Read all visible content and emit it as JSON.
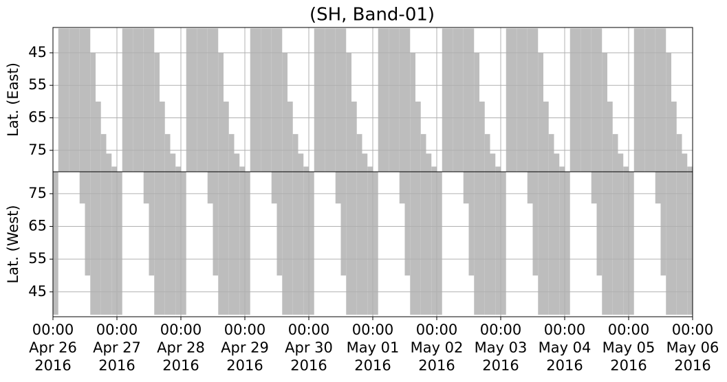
{
  "chart_data": {
    "type": "bar",
    "title": "(SH, Band-01)",
    "color": "#bdbdbd",
    "grid": true,
    "xlim": [
      "2016-04-26 00:00",
      "2016-05-06 00:00"
    ],
    "xticks": [
      {
        "value": "2016-04-26 00:00",
        "label": [
          "00:00",
          "Apr 26",
          "2016"
        ]
      },
      {
        "value": "2016-04-27 00:00",
        "label": [
          "00:00",
          "Apr 27",
          "2016"
        ]
      },
      {
        "value": "2016-04-28 00:00",
        "label": [
          "00:00",
          "Apr 28",
          "2016"
        ]
      },
      {
        "value": "2016-04-29 00:00",
        "label": [
          "00:00",
          "Apr 29",
          "2016"
        ]
      },
      {
        "value": "2016-04-30 00:00",
        "label": [
          "00:00",
          "Apr 30",
          "2016"
        ]
      },
      {
        "value": "2016-05-01 00:00",
        "label": [
          "00:00",
          "May 01",
          "2016"
        ]
      },
      {
        "value": "2016-05-02 00:00",
        "label": [
          "00:00",
          "May 02",
          "2016"
        ]
      },
      {
        "value": "2016-05-03 00:00",
        "label": [
          "00:00",
          "May 03",
          "2016"
        ]
      },
      {
        "value": "2016-05-04 00:00",
        "label": [
          "00:00",
          "May 04",
          "2016"
        ]
      },
      {
        "value": "2016-05-05 00:00",
        "label": [
          "00:00",
          "May 05",
          "2016"
        ]
      },
      {
        "value": "2016-05-06 00:00",
        "label": [
          "00:00",
          "May 06",
          "2016"
        ]
      }
    ],
    "x": [
      "2016-04-26 00:00",
      "2016-04-26 02:00",
      "2016-04-26 04:00",
      "2016-04-26 06:00",
      "2016-04-26 08:00",
      "2016-04-26 10:00",
      "2016-04-26 12:00",
      "2016-04-26 14:00",
      "2016-04-26 16:00",
      "2016-04-26 18:00",
      "2016-04-26 20:00",
      "2016-04-26 22:00",
      "2016-04-27 00:00",
      "2016-04-27 02:00",
      "2016-04-27 04:00",
      "2016-04-27 06:00",
      "2016-04-27 08:00",
      "2016-04-27 10:00",
      "2016-04-27 12:00",
      "2016-04-27 14:00",
      "2016-04-27 16:00",
      "2016-04-27 18:00",
      "2016-04-27 20:00",
      "2016-04-27 22:00",
      "2016-04-28 00:00",
      "2016-04-28 02:00",
      "2016-04-28 04:00",
      "2016-04-28 06:00",
      "2016-04-28 08:00",
      "2016-04-28 10:00",
      "2016-04-28 12:00",
      "2016-04-28 14:00",
      "2016-04-28 16:00",
      "2016-04-28 18:00",
      "2016-04-28 20:00",
      "2016-04-28 22:00",
      "2016-04-29 00:00",
      "2016-04-29 02:00",
      "2016-04-29 04:00",
      "2016-04-29 06:00",
      "2016-04-29 08:00",
      "2016-04-29 10:00",
      "2016-04-29 12:00",
      "2016-04-29 14:00",
      "2016-04-29 16:00",
      "2016-04-29 18:00",
      "2016-04-29 20:00",
      "2016-04-29 22:00",
      "2016-04-30 00:00",
      "2016-04-30 02:00",
      "2016-04-30 04:00",
      "2016-04-30 06:00",
      "2016-04-30 08:00",
      "2016-04-30 10:00",
      "2016-04-30 12:00",
      "2016-04-30 14:00",
      "2016-04-30 16:00",
      "2016-04-30 18:00",
      "2016-04-30 20:00",
      "2016-04-30 22:00",
      "2016-05-01 00:00",
      "2016-05-01 02:00",
      "2016-05-01 04:00",
      "2016-05-01 06:00",
      "2016-05-01 08:00",
      "2016-05-01 10:00",
      "2016-05-01 12:00",
      "2016-05-01 14:00",
      "2016-05-01 16:00",
      "2016-05-01 18:00",
      "2016-05-01 20:00",
      "2016-05-01 22:00",
      "2016-05-02 00:00",
      "2016-05-02 02:00",
      "2016-05-02 04:00",
      "2016-05-02 06:00",
      "2016-05-02 08:00",
      "2016-05-02 10:00",
      "2016-05-02 12:00",
      "2016-05-02 14:00",
      "2016-05-02 16:00",
      "2016-05-02 18:00",
      "2016-05-02 20:00",
      "2016-05-02 22:00",
      "2016-05-03 00:00",
      "2016-05-03 02:00",
      "2016-05-03 04:00",
      "2016-05-03 06:00",
      "2016-05-03 08:00",
      "2016-05-03 10:00",
      "2016-05-03 12:00",
      "2016-05-03 14:00",
      "2016-05-03 16:00",
      "2016-05-03 18:00",
      "2016-05-03 20:00",
      "2016-05-03 22:00",
      "2016-05-04 00:00",
      "2016-05-04 02:00",
      "2016-05-04 04:00",
      "2016-05-04 06:00",
      "2016-05-04 08:00",
      "2016-05-04 10:00",
      "2016-05-04 12:00",
      "2016-05-04 14:00",
      "2016-05-04 16:00",
      "2016-05-04 18:00",
      "2016-05-04 20:00",
      "2016-05-04 22:00",
      "2016-05-05 00:00",
      "2016-05-05 02:00",
      "2016-05-05 04:00",
      "2016-05-05 06:00",
      "2016-05-05 08:00",
      "2016-05-05 10:00",
      "2016-05-05 12:00",
      "2016-05-05 14:00",
      "2016-05-05 16:00",
      "2016-05-05 18:00",
      "2016-05-05 20:00",
      "2016-05-05 22:00"
    ],
    "panels": [
      {
        "ylabel": "Lat. (East)",
        "ylim": [
          81.6,
          37.2
        ],
        "yticks": [
          45,
          55,
          65,
          75
        ],
        "bar_base": "bottom",
        "values": [
          null,
          37.5,
          37.5,
          37.5,
          37.5,
          37.5,
          37.5,
          45,
          60,
          70,
          76,
          80,
          null,
          37.5,
          37.5,
          37.5,
          37.5,
          37.5,
          37.5,
          45,
          60,
          70,
          76,
          80,
          null,
          37.5,
          37.5,
          37.5,
          37.5,
          37.5,
          37.5,
          45,
          60,
          70,
          76,
          80,
          null,
          37.5,
          37.5,
          37.5,
          37.5,
          37.5,
          37.5,
          45,
          60,
          70,
          76,
          80,
          null,
          37.5,
          37.5,
          37.5,
          37.5,
          37.5,
          37.5,
          45,
          60,
          70,
          76,
          80,
          null,
          37.5,
          37.5,
          37.5,
          37.5,
          37.5,
          37.5,
          45,
          60,
          70,
          76,
          80,
          null,
          37.5,
          37.5,
          37.5,
          37.5,
          37.5,
          37.5,
          45,
          60,
          70,
          76,
          80,
          null,
          37.5,
          37.5,
          37.5,
          37.5,
          37.5,
          37.5,
          45,
          60,
          70,
          76,
          80,
          null,
          37.5,
          37.5,
          37.5,
          37.5,
          37.5,
          37.5,
          45,
          60,
          70,
          76,
          80,
          null,
          37.5,
          37.5,
          37.5,
          37.5,
          37.5,
          37.5,
          45,
          60,
          70,
          76,
          80
        ]
      },
      {
        "ylabel": "Lat. (West)",
        "ylim": [
          37.4,
          81.7
        ],
        "yticks": [
          45,
          55,
          65,
          75
        ],
        "bar_base": "top",
        "values": [
          38,
          null,
          null,
          null,
          null,
          72,
          50,
          38,
          38,
          38,
          38,
          38,
          38,
          null,
          null,
          null,
          null,
          72,
          50,
          38,
          38,
          38,
          38,
          38,
          38,
          null,
          null,
          null,
          null,
          72,
          50,
          38,
          38,
          38,
          38,
          38,
          38,
          null,
          null,
          null,
          null,
          72,
          50,
          38,
          38,
          38,
          38,
          38,
          38,
          null,
          null,
          null,
          null,
          72,
          50,
          38,
          38,
          38,
          38,
          38,
          38,
          null,
          null,
          null,
          null,
          72,
          50,
          38,
          38,
          38,
          38,
          38,
          38,
          null,
          null,
          null,
          null,
          72,
          50,
          38,
          38,
          38,
          38,
          38,
          38,
          null,
          null,
          null,
          null,
          72,
          50,
          38,
          38,
          38,
          38,
          38,
          38,
          null,
          null,
          null,
          null,
          72,
          50,
          38,
          38,
          38,
          38,
          38,
          38,
          null,
          null,
          null,
          null,
          72,
          50,
          38,
          38,
          38,
          38,
          38
        ]
      }
    ]
  }
}
